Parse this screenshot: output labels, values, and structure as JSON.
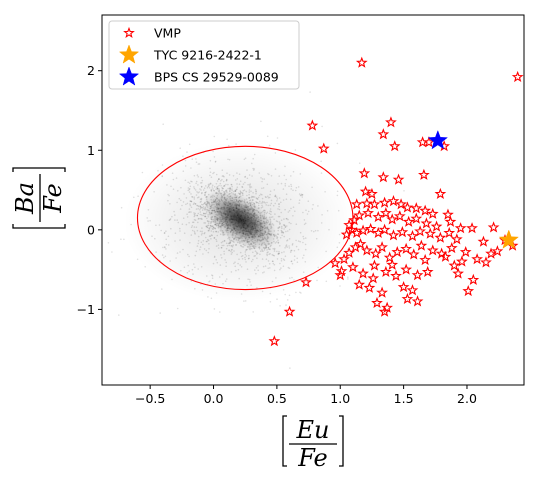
{
  "chart_data": {
    "type": "scatter",
    "xlabel": {
      "numerator": "Eu",
      "denominator": "Fe"
    },
    "ylabel": {
      "numerator": "Ba",
      "denominator": "Fe"
    },
    "xlim": [
      -0.88,
      2.45
    ],
    "ylim": [
      -1.95,
      2.7
    ],
    "xticks": [
      -0.5,
      0.0,
      0.5,
      1.0,
      1.5,
      2.0
    ],
    "yticks": [
      -1,
      0,
      1,
      2
    ],
    "xtick_labels": [
      "−0.5",
      "0.0",
      "0.5",
      "1.0",
      "1.5",
      "2.0"
    ],
    "ytick_labels": [
      "−1",
      "0",
      "1",
      "2"
    ],
    "grid": false,
    "legend_position": "top-left",
    "background_density": {
      "center": [
        0.15,
        0.15
      ],
      "color": "#000000"
    },
    "ellipse": {
      "cx": 0.25,
      "cy": 0.15,
      "rx": 0.85,
      "ry": 0.9,
      "color": "#ff0000"
    },
    "series": [
      {
        "name": "VMP",
        "marker": "star-open",
        "color": "#ff0000",
        "points": [
          [
            1.17,
            2.1
          ],
          [
            2.4,
            1.92
          ],
          [
            0.78,
            1.31
          ],
          [
            1.4,
            1.35
          ],
          [
            1.34,
            1.2
          ],
          [
            0.87,
            1.02
          ],
          [
            1.43,
            1.05
          ],
          [
            1.65,
            1.1
          ],
          [
            1.7,
            1.1
          ],
          [
            1.82,
            1.05
          ],
          [
            1.19,
            0.71
          ],
          [
            1.34,
            0.66
          ],
          [
            1.46,
            0.63
          ],
          [
            1.66,
            0.69
          ],
          [
            1.79,
            0.45
          ],
          [
            1.2,
            0.48
          ],
          [
            1.25,
            0.45
          ],
          [
            1.13,
            0.32
          ],
          [
            1.21,
            0.33
          ],
          [
            1.27,
            0.32
          ],
          [
            1.35,
            0.34
          ],
          [
            1.42,
            0.36
          ],
          [
            1.48,
            0.32
          ],
          [
            1.53,
            0.28
          ],
          [
            1.6,
            0.27
          ],
          [
            1.67,
            0.24
          ],
          [
            1.73,
            0.2
          ],
          [
            1.85,
            0.19
          ],
          [
            1.07,
            0.06
          ],
          [
            1.11,
            0.12
          ],
          [
            1.15,
            0.18
          ],
          [
            1.22,
            0.21
          ],
          [
            1.3,
            0.16
          ],
          [
            1.36,
            0.21
          ],
          [
            1.41,
            0.13
          ],
          [
            1.47,
            0.17
          ],
          [
            1.54,
            0.1
          ],
          [
            1.6,
            0.14
          ],
          [
            1.68,
            0.08
          ],
          [
            1.76,
            0.04
          ],
          [
            1.87,
            0.1
          ],
          [
            1.95,
            0.02
          ],
          [
            2.04,
            0.02
          ],
          [
            2.21,
            0.03
          ],
          [
            2.3,
            -0.13
          ],
          [
            1.05,
            -0.06
          ],
          [
            1.09,
            0.0
          ],
          [
            1.13,
            -0.04
          ],
          [
            1.18,
            -0.01
          ],
          [
            1.24,
            0.01
          ],
          [
            1.3,
            -0.04
          ],
          [
            1.35,
            0.0
          ],
          [
            1.42,
            -0.07
          ],
          [
            1.49,
            -0.03
          ],
          [
            1.57,
            -0.08
          ],
          [
            1.63,
            -0.02
          ],
          [
            1.71,
            -0.05
          ],
          [
            1.79,
            -0.1
          ],
          [
            1.86,
            -0.04
          ],
          [
            1.92,
            -0.12
          ],
          [
            2.13,
            -0.15
          ],
          [
            2.19,
            -0.3
          ],
          [
            2.24,
            -0.27
          ],
          [
            2.36,
            -0.2
          ],
          [
            0.96,
            -0.42
          ],
          [
            1.03,
            -0.37
          ],
          [
            1.07,
            -0.29
          ],
          [
            1.12,
            -0.22
          ],
          [
            1.16,
            -0.18
          ],
          [
            1.21,
            -0.26
          ],
          [
            1.28,
            -0.3
          ],
          [
            1.33,
            -0.22
          ],
          [
            1.39,
            -0.35
          ],
          [
            1.45,
            -0.28
          ],
          [
            1.52,
            -0.24
          ],
          [
            1.58,
            -0.31
          ],
          [
            1.64,
            -0.2
          ],
          [
            1.73,
            -0.26
          ],
          [
            1.8,
            -0.3
          ],
          [
            1.88,
            -0.23
          ],
          [
            1.99,
            -0.28
          ],
          [
            2.08,
            -0.37
          ],
          [
            2.15,
            -0.41
          ],
          [
            1.01,
            -0.52
          ],
          [
            1.1,
            -0.47
          ],
          [
            1.18,
            -0.55
          ],
          [
            1.26,
            -0.61
          ],
          [
            1.36,
            -0.53
          ],
          [
            1.44,
            -0.58
          ],
          [
            1.52,
            -0.5
          ],
          [
            1.61,
            -0.57
          ],
          [
            1.69,
            -0.53
          ],
          [
            1.9,
            -0.45
          ],
          [
            1.93,
            -0.55
          ],
          [
            2.05,
            -0.63
          ],
          [
            0.73,
            -0.66
          ],
          [
            1.15,
            -0.69
          ],
          [
            1.23,
            -0.73
          ],
          [
            1.33,
            -0.79
          ],
          [
            1.5,
            -0.72
          ],
          [
            1.57,
            -0.76
          ],
          [
            1.0,
            -0.57
          ],
          [
            1.29,
            -0.92
          ],
          [
            1.37,
            -0.98
          ],
          [
            1.53,
            -0.87
          ],
          [
            1.61,
            -0.9
          ],
          [
            2.01,
            -0.77
          ],
          [
            0.6,
            -1.03
          ],
          [
            1.35,
            -1.03
          ],
          [
            0.48,
            -1.4
          ],
          [
            1.27,
            -0.45
          ],
          [
            1.41,
            -0.44
          ],
          [
            1.67,
            -0.38
          ],
          [
            1.83,
            -0.34
          ],
          [
            1.96,
            -0.4
          ]
        ]
      },
      {
        "name": "TYC 9216-2422-1",
        "marker": "star-filled",
        "color": "#ffa500",
        "points": [
          [
            2.33,
            -0.13
          ]
        ]
      },
      {
        "name": "BPS CS 29529-0089",
        "marker": "star-filled",
        "color": "#0000ff",
        "points": [
          [
            1.77,
            1.12
          ]
        ]
      }
    ]
  }
}
